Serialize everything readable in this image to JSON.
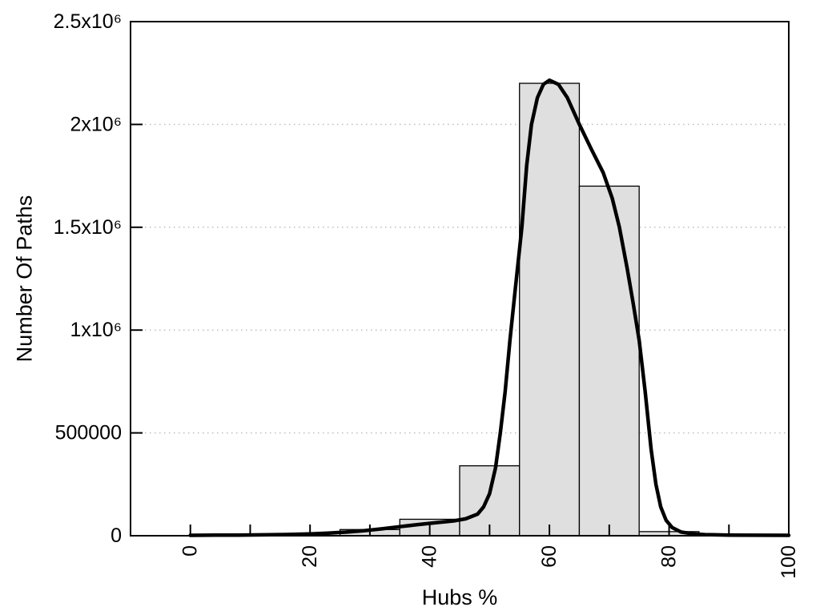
{
  "figure": {
    "background": "#ffffff"
  },
  "chart_data": {
    "type": "bar",
    "subtype": "histogram-with-fitted-curve",
    "title": "",
    "xlabel": "Hubs %",
    "ylabel": "Number Of Paths",
    "xlim": [
      -10,
      100
    ],
    "ylim": [
      0,
      2500000
    ],
    "grid": "horizontal-dotted",
    "legend": null,
    "x_axis": {
      "major_ticks": [
        {
          "value": 0,
          "label": "0"
        },
        {
          "value": 20,
          "label": "20"
        },
        {
          "value": 40,
          "label": "40"
        },
        {
          "value": 60,
          "label": "60"
        },
        {
          "value": 80,
          "label": "80"
        },
        {
          "value": 100,
          "label": "100"
        }
      ],
      "minor_ticks": [
        10,
        30,
        50,
        70,
        90
      ],
      "tick_label_rotation_deg": -90
    },
    "y_axis": {
      "ticks": [
        {
          "value": 0,
          "label": "0"
        },
        {
          "value": 500000,
          "label": "500000"
        },
        {
          "value": 1000000,
          "label": "1x10⁶"
        },
        {
          "value": 1500000,
          "label": "1.5x10⁶"
        },
        {
          "value": 2000000,
          "label": "2x10⁶"
        },
        {
          "value": 2500000,
          "label": "2.5x10⁶"
        }
      ],
      "grid_values": [
        500000,
        1000000,
        1500000,
        2000000
      ]
    },
    "histogram": {
      "bin_width": 10,
      "bin_centers": [
        30,
        40,
        50,
        60,
        70,
        80
      ],
      "values": [
        30000,
        80000,
        340000,
        2200000,
        1700000,
        20000
      ]
    },
    "curve": {
      "name": "fitted-density-curve",
      "points": [
        [
          0,
          2000
        ],
        [
          4,
          2600
        ],
        [
          8,
          3300
        ],
        [
          12,
          4300
        ],
        [
          16,
          6000
        ],
        [
          20,
          9000
        ],
        [
          23,
          12500
        ],
        [
          26,
          17500
        ],
        [
          29,
          24500
        ],
        [
          32,
          33500
        ],
        [
          35,
          44000
        ],
        [
          38,
          54000
        ],
        [
          41,
          63000
        ],
        [
          44,
          72000
        ],
        [
          46,
          82000
        ],
        [
          48,
          105000
        ],
        [
          49,
          140000
        ],
        [
          50,
          205000
        ],
        [
          51,
          330000
        ],
        [
          51.8,
          500000
        ],
        [
          52.6,
          700000
        ],
        [
          53.4,
          950000
        ],
        [
          54.3,
          1200000
        ],
        [
          55.4,
          1500000
        ],
        [
          56.2,
          1800000
        ],
        [
          57,
          2000000
        ],
        [
          58,
          2130000
        ],
        [
          59,
          2195000
        ],
        [
          60,
          2215000
        ],
        [
          61.5,
          2195000
        ],
        [
          63,
          2130000
        ],
        [
          65,
          2000000
        ],
        [
          67,
          1880000
        ],
        [
          69,
          1765000
        ],
        [
          70.5,
          1640000
        ],
        [
          71.7,
          1500000
        ],
        [
          73,
          1300000
        ],
        [
          74,
          1130000
        ],
        [
          75,
          950000
        ],
        [
          76,
          700000
        ],
        [
          77,
          420000
        ],
        [
          77.8,
          250000
        ],
        [
          78.6,
          140000
        ],
        [
          79.5,
          75000
        ],
        [
          80.5,
          40000
        ],
        [
          82,
          18000
        ],
        [
          84,
          9000
        ],
        [
          86,
          5500
        ],
        [
          90,
          3200
        ],
        [
          95,
          2300
        ],
        [
          100,
          1900
        ]
      ]
    },
    "colors": {
      "bar_fill": "#dfdfdf",
      "bar_border": "#000000",
      "curve": "#000000",
      "grid": "#bdbdbd",
      "axis": "#000000",
      "text": "#000000",
      "background": "#ffffff"
    }
  }
}
